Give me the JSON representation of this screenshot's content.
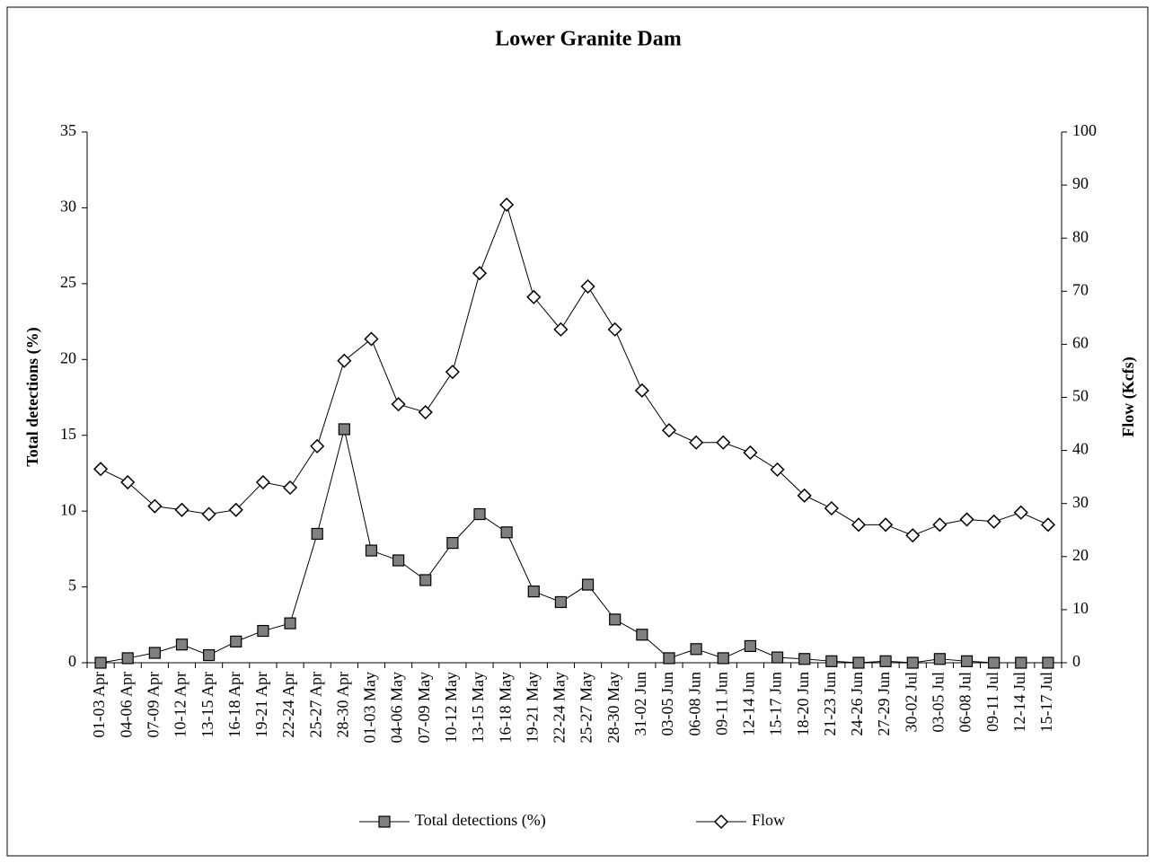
{
  "chart_data": {
    "type": "line",
    "title": "Lower Granite Dam",
    "y_label": "Total detections (%)",
    "y2_label": "Flow (Kcfs)",
    "categories": [
      "01-03 Apr",
      "04-06 Apr",
      "07-09 Apr",
      "10-12 Apr",
      "13-15 Apr",
      "16-18 Apr",
      "19-21 Apr",
      "22-24 Apr",
      "25-27 Apr",
      "28-30 Apr",
      "01-03 May",
      "04-06 May",
      "07-09 May",
      "10-12 May",
      "13-15 May",
      "16-18 May",
      "19-21 May",
      "22-24 May",
      "25-27 May",
      "28-30 May",
      "31-02 Jun",
      "03-05 Jun",
      "06-08 Jun",
      "09-11 Jun",
      "12-14 Jun",
      "15-17 Jun",
      "18-20 Jun",
      "21-23 Jun",
      "24-26 Jun",
      "27-29 Jun",
      "30-02 Jul",
      "03-05 Jul",
      "06-08 Jul",
      "09-11 Jul",
      "12-14 Jul",
      "15-17 Jul"
    ],
    "series": [
      {
        "name": "Total detections (%)",
        "color": "#808080",
        "marker": "square",
        "axis": "y",
        "values": [
          0,
          0.3,
          0.65,
          1.2,
          0.5,
          1.4,
          2.1,
          2.6,
          8.5,
          15.4,
          7.4,
          6.75,
          5.45,
          7.9,
          9.8,
          8.6,
          4.7,
          4.0,
          5.15,
          2.85,
          1.85,
          0.3,
          0.9,
          0.3,
          1.1,
          0.35,
          0.25,
          0.1,
          0,
          0.1,
          0,
          0.25,
          0.1,
          0,
          0,
          0
        ]
      },
      {
        "name": "Flow",
        "color": "#ffffff",
        "marker": "diamond",
        "axis": "y2",
        "values": [
          36.5,
          34,
          29.5,
          28.8,
          28,
          28.8,
          34,
          33,
          40.8,
          56.9,
          61,
          48.7,
          47.2,
          54.8,
          73.4,
          86.3,
          68.9,
          62.8,
          70.9,
          62.8,
          51.3,
          43.8,
          41.5,
          41.5,
          39.6,
          36.4,
          31.5,
          29.1,
          26,
          26,
          24,
          26,
          27,
          26.6,
          28.3,
          26
        ]
      }
    ],
    "ylim": [
      0,
      35
    ],
    "yticks": [
      0,
      5,
      10,
      15,
      20,
      25,
      30,
      35
    ],
    "y2lim": [
      0,
      100
    ],
    "y2ticks": [
      0,
      10,
      20,
      30,
      40,
      50,
      60,
      70,
      80,
      90,
      100
    ],
    "grid": false,
    "legend": "bottom"
  }
}
